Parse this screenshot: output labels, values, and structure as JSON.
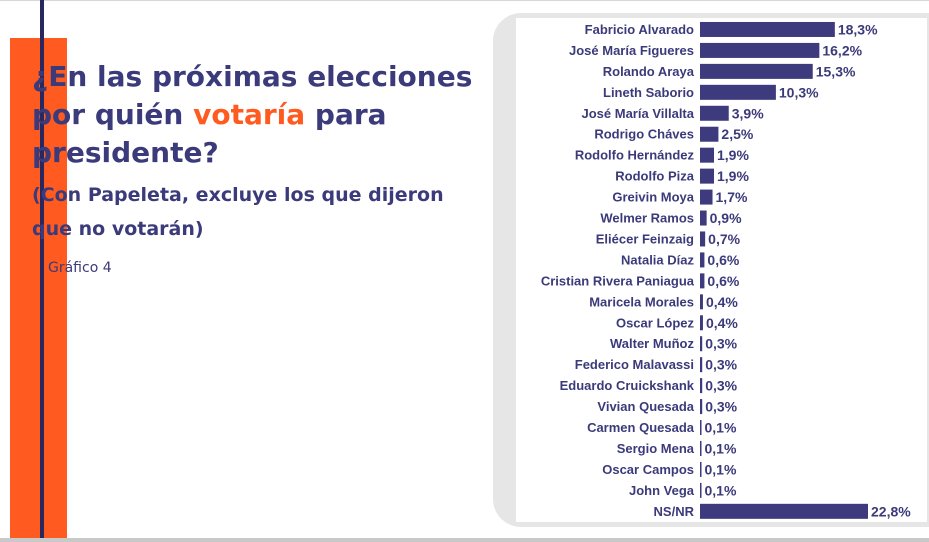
{
  "title": {
    "line1": "¿En las próximas elecciones",
    "line2_before": "por quién ",
    "line2_accent": "votaría",
    "line2_after": " para",
    "line3": "presidente?"
  },
  "subtitle": "(Con Papeleta, excluye los que dijeron que no votarán)",
  "figure_label": "Gráfico 4",
  "colors": {
    "bar": "#3d3a7e",
    "accent_orange": "#ff5a1f",
    "text_navy": "#3b3a7a",
    "panel_gray": "#e6e6e6"
  },
  "chart_data": {
    "type": "bar",
    "orientation": "horizontal",
    "categories": [
      "Fabricio Alvarado",
      "José María Figueres",
      "Rolando Araya",
      "Lineth Saborio",
      "José María Villalta",
      "Rodrigo Cháves",
      "Rodolfo Hernández",
      "Rodolfo Piza",
      "Greivin Moya",
      "Welmer Ramos",
      "Eliécer Feinzaig",
      "Natalia Díaz",
      "Cristian Rivera Paniagua",
      "Maricela Morales",
      "Oscar López",
      "Walter Muñoz",
      "Federico Malavassi",
      "Eduardo Cruickshank",
      "Vivian Quesada",
      "Carmen Quesada",
      "Sergio Mena",
      "Oscar Campos",
      "John Vega",
      "NS/NR"
    ],
    "values": [
      18.3,
      16.2,
      15.3,
      10.3,
      3.9,
      2.5,
      1.9,
      1.9,
      1.7,
      0.9,
      0.7,
      0.6,
      0.6,
      0.4,
      0.4,
      0.3,
      0.3,
      0.3,
      0.3,
      0.1,
      0.1,
      0.1,
      0.1,
      22.8
    ],
    "value_labels": [
      "18,3%",
      "16,2%",
      "15,3%",
      "10,3%",
      "3,9%",
      "2,5%",
      "1,9%",
      "1,9%",
      "1,7%",
      "0,9%",
      "0,7%",
      "0,6%",
      "0,6%",
      "0,4%",
      "0,4%",
      "0,3%",
      "0,3%",
      "0,3%",
      "0,3%",
      "0,1%",
      "0,1%",
      "0,1%",
      "0,1%",
      "22,8%"
    ],
    "unit": "%",
    "xlim": [
      0,
      22.8
    ],
    "grid": false,
    "legend": "none"
  }
}
